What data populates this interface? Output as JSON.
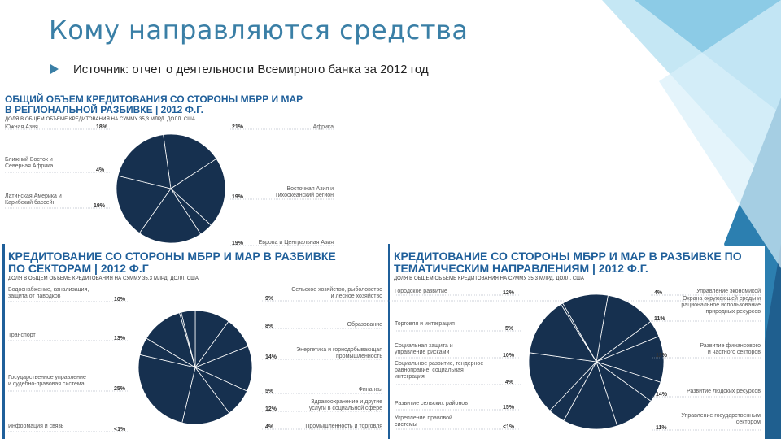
{
  "slide": {
    "title": "Кому направляются средства",
    "source": "Источник: отчет о деятельности Всемирного банка за 2012 год"
  },
  "colors": {
    "pie_fill": "#16304f",
    "pie_stroke": "#ffffff",
    "title_blue": "#1f5f9a",
    "accent": "#3a7fa6"
  },
  "chart_data": [
    {
      "type": "pie",
      "title": [
        "ОБЩИЙ ОБЪЕМ КРЕДИТОВАНИЯ СО СТОРОНЫ МБРР И МАР",
        "В РЕГИОНАЛЬНОЙ РАЗБИВКЕ | 2012 Ф.Г."
      ],
      "subtitle": "ДОЛЯ В ОБЩЕМ ОБЪЕМЕ КРЕДИТОВАНИЯ НА СУММУ 35,3 МЛРД. ДОЛЛ. США",
      "slices": [
        {
          "label": "Южная Азия",
          "value": 18,
          "text": "18%"
        },
        {
          "label": "Африка",
          "value": 21,
          "text": "21%"
        },
        {
          "label": "Ближний Восток и\nСеверная Африка",
          "value": 4,
          "text": "4%"
        },
        {
          "label": "Восточная Азия и\nТихоокеанский регион",
          "value": 19,
          "text": "19%"
        },
        {
          "label": "Латинская Америка и\nКарибский бассейн",
          "value": 19,
          "text": "19%"
        },
        {
          "label": "Европа и Центральная Азия",
          "value": 19,
          "text": "19%"
        }
      ]
    },
    {
      "type": "pie",
      "title": [
        "КРЕДИТОВАНИЕ СО СТОРОНЫ МБРР И МАР В РАЗБИВКЕ",
        "ПО СЕКТОРАМ | 2012 Ф.Г"
      ],
      "subtitle": "ДОЛЯ В ОБЩЕМ ОБЪЕМЕ КРЕДИТОВАНИЯ НА СУММУ 35,3 МЛРД. ДОЛЛ. США",
      "slices": [
        {
          "label": "Водоснабжение, канализация,\nзащита от паводков",
          "value": 10,
          "text": "10%"
        },
        {
          "label": "Сельское хозяйство, рыболовство\nи лесное хозяйство",
          "value": 9,
          "text": "9%"
        },
        {
          "label": "Транспорт",
          "value": 13,
          "text": "13%"
        },
        {
          "label": "Образование",
          "value": 8,
          "text": "8%"
        },
        {
          "label": "Энергетика и горнодобывающая\nпромышленность",
          "value": 14,
          "text": "14%"
        },
        {
          "label": "Государственное управление\nи судебно-правовая система",
          "value": 25,
          "text": "25%"
        },
        {
          "label": "Финансы",
          "value": 5,
          "text": "5%"
        },
        {
          "label": "Здравоохранение и другие\nуслуги в социальной сфере",
          "value": 12,
          "text": "12%"
        },
        {
          "label": "Информация и связь",
          "value": 0.5,
          "text": "<1%"
        },
        {
          "label": "Промышленность и торговля",
          "value": 4,
          "text": "4%"
        }
      ]
    },
    {
      "type": "pie",
      "title": [
        "КРЕДИТОВАНИЕ СО СТОРОНЫ МБРР И МАР В РАЗБИВКЕ ПО",
        "ТЕМАТИЧЕСКИМ НАПРАВЛЕНИЯМ | 2012 Ф.Г."
      ],
      "subtitle": "ДОЛЯ В ОБЩЕМ ОБЪЕМЕ КРЕДИТОВАНИЯ НА СУММУ 35,3 МЛРД. ДОЛЛ. США",
      "slices": [
        {
          "label": "Городское развитие",
          "value": 12,
          "text": "12%"
        },
        {
          "label": "Управление экономикой",
          "value": 4,
          "text": "4%"
        },
        {
          "label": "Охрана окружающей среды и\nрациональное использование\nприродных ресурсов",
          "value": 11,
          "text": "11%"
        },
        {
          "label": "Торговля и интеграция",
          "value": 5,
          "text": "5%"
        },
        {
          "label": "Социальная защита и\nуправление рисками",
          "value": 10,
          "text": "10%"
        },
        {
          "label": "Развитие финансового\nи частного секторов",
          "value": 13,
          "text": "13%"
        },
        {
          "label": "Социальное развитие, гендерное\nравноправие, социальная\nинтеграция",
          "value": 4,
          "text": "4%"
        },
        {
          "label": "Развитие сельских районов",
          "value": 15,
          "text": "15%"
        },
        {
          "label": "Развитие людских ресурсов",
          "value": 14,
          "text": "14%"
        },
        {
          "label": "Укрепление правовой\nсистемы",
          "value": 0.5,
          "text": "<1%"
        },
        {
          "label": "Управление государственным\nсектором",
          "value": 11,
          "text": "11%"
        }
      ]
    }
  ]
}
